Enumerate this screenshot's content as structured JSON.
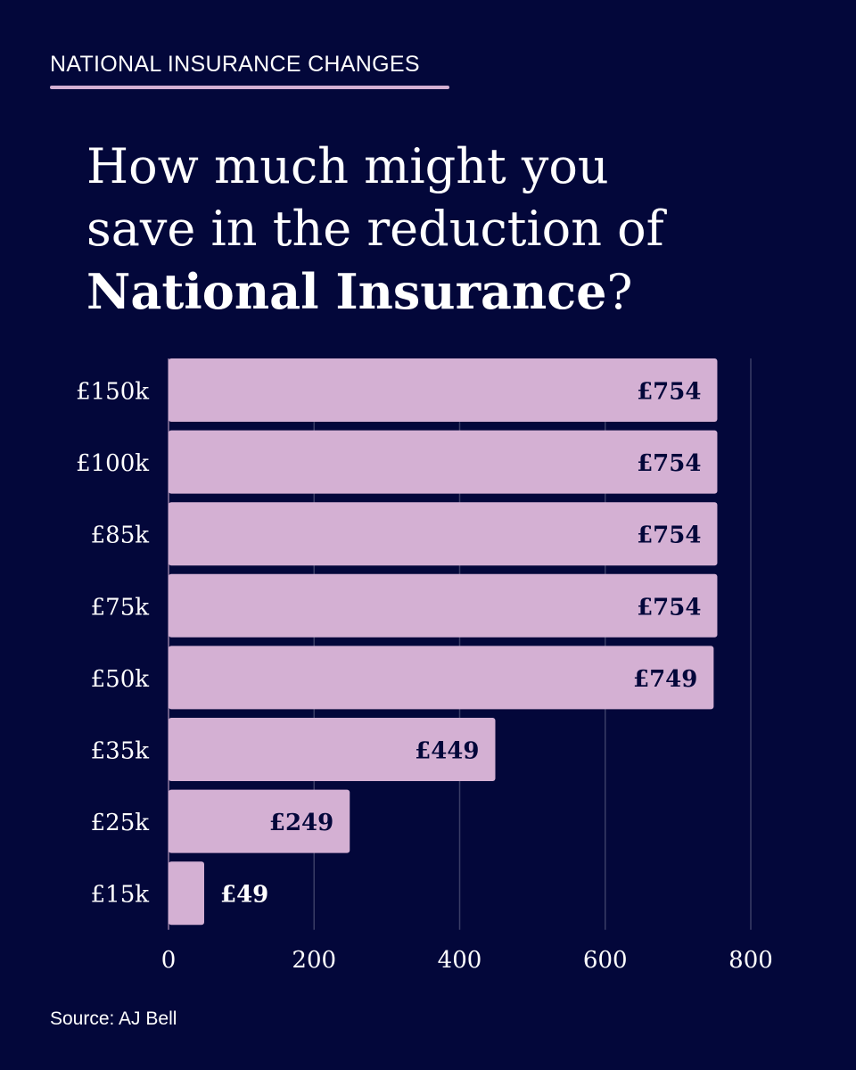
{
  "header": {
    "kicker": "NATIONAL INSURANCE CHANGES",
    "title_line1": "How much might you",
    "title_line2": "save in the reduction of",
    "title_bold": "National Insurance",
    "title_end": "?"
  },
  "source": "Source: AJ Bell",
  "colors": {
    "background": "#03073a",
    "bar": "#d4b0d3",
    "label_on_bar": "#03073a",
    "gridline": "#3a3d66",
    "accent_rule": "#d4b0d3"
  },
  "chart_data": {
    "type": "bar",
    "orientation": "horizontal",
    "categories": [
      "£150k",
      "£100k",
      "£85k",
      "£75k",
      "£50k",
      "£35k",
      "£25k",
      "£15k"
    ],
    "values": [
      754,
      754,
      754,
      754,
      749,
      449,
      249,
      49
    ],
    "data_labels": [
      "£754",
      "£754",
      "£754",
      "£754",
      "£749",
      "£449",
      "£249",
      "£49"
    ],
    "xlim": [
      0,
      800
    ],
    "xticks": [
      0,
      200,
      400,
      600,
      800
    ],
    "xtick_labels": [
      "0",
      "200",
      "400",
      "600",
      "800"
    ],
    "grid": true,
    "title": "",
    "xlabel": "",
    "ylabel": ""
  }
}
